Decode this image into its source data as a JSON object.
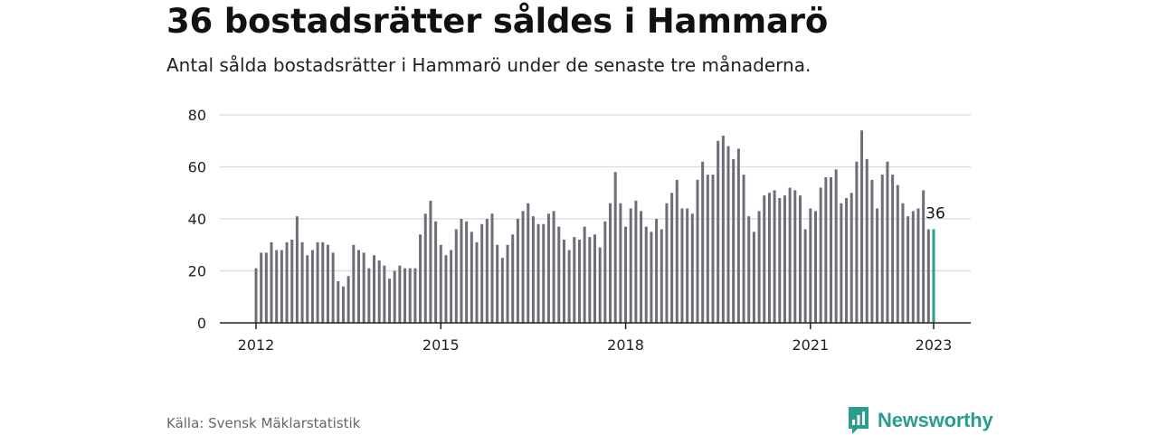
{
  "title": "36 bostadsrätter såldes i Hammarö",
  "subtitle": "Antal sålda bostadsrätter i Hammarö under de senaste tre månaderna.",
  "source": "Källa: Svensk Mäklarstatistik",
  "brand": {
    "name": "Newsworthy",
    "color": "#2a9d8f"
  },
  "colors": {
    "bar": "#6e6e78",
    "highlight": "#2a9d8f",
    "grid": "#d9d9d9",
    "axis": "#222222"
  },
  "chart_data": {
    "type": "bar",
    "title": "",
    "xlabel": "",
    "ylabel": "",
    "ylim": [
      0,
      80
    ],
    "yticks": [
      0,
      20,
      40,
      60,
      80
    ],
    "xticks": [
      {
        "label": "2012",
        "index": 0
      },
      {
        "label": "2015",
        "index": 36
      },
      {
        "label": "2018",
        "index": 72
      },
      {
        "label": "2021",
        "index": 108
      },
      {
        "label": "2023",
        "index": 132
      }
    ],
    "grid": true,
    "annotation": {
      "text": "36",
      "index": 132
    },
    "series": [
      {
        "values": [
          21,
          27,
          27,
          31,
          28,
          28,
          31,
          32,
          41,
          31,
          26,
          28,
          31,
          31,
          30,
          27,
          16,
          14,
          18,
          30,
          28,
          27,
          21,
          26,
          24,
          22,
          17,
          20,
          22,
          21,
          21,
          21,
          34,
          42,
          47,
          39,
          30,
          26,
          28,
          36,
          40,
          39,
          35,
          31,
          38,
          40,
          42,
          30,
          25,
          30,
          34,
          40,
          43,
          46,
          41,
          38,
          38,
          42,
          43,
          37,
          32,
          28,
          33,
          32,
          37,
          33,
          34,
          29,
          39,
          46,
          58,
          46,
          37,
          44,
          47,
          43,
          37,
          35,
          40,
          36,
          46,
          50,
          55,
          44,
          44,
          42,
          55,
          62,
          57,
          57,
          70,
          72,
          68,
          63,
          67,
          57,
          41,
          35,
          43,
          49,
          50,
          51,
          48,
          49,
          52,
          51,
          49,
          36,
          44,
          43,
          52,
          56,
          56,
          59,
          46,
          48,
          50,
          62,
          74,
          63,
          55,
          44,
          57,
          62,
          57,
          53,
          46,
          41,
          43,
          44,
          51,
          36,
          36
        ]
      }
    ]
  }
}
